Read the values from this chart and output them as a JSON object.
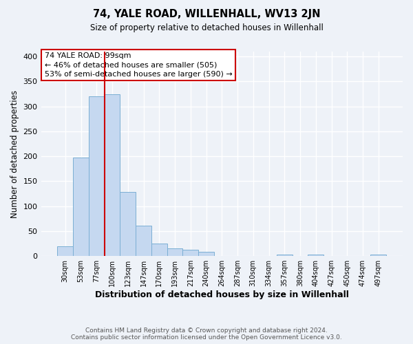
{
  "title": "74, YALE ROAD, WILLENHALL, WV13 2JN",
  "subtitle": "Size of property relative to detached houses in Willenhall",
  "xlabel": "Distribution of detached houses by size in Willenhall",
  "ylabel": "Number of detached properties",
  "bar_labels": [
    "30sqm",
    "53sqm",
    "77sqm",
    "100sqm",
    "123sqm",
    "147sqm",
    "170sqm",
    "193sqm",
    "217sqm",
    "240sqm",
    "264sqm",
    "287sqm",
    "310sqm",
    "334sqm",
    "357sqm",
    "380sqm",
    "404sqm",
    "427sqm",
    "450sqm",
    "474sqm",
    "497sqm"
  ],
  "all_bar_values": [
    19,
    198,
    320,
    325,
    128,
    61,
    25,
    16,
    13,
    8,
    0,
    0,
    0,
    0,
    3,
    0,
    3,
    0,
    0,
    0,
    3
  ],
  "bar_color": "#c5d8f0",
  "bar_edge_color": "#7bafd4",
  "vline_color": "#cc0000",
  "vline_position": 2.5,
  "annotation_text_line1": "74 YALE ROAD: 99sqm",
  "annotation_text_line2": "← 46% of detached houses are smaller (505)",
  "annotation_text_line3": "53% of semi-detached houses are larger (590) →",
  "box_edge_color": "#cc0000",
  "ylim": [
    0,
    410
  ],
  "yticks": [
    0,
    50,
    100,
    150,
    200,
    250,
    300,
    350,
    400
  ],
  "footer_line1": "Contains HM Land Registry data © Crown copyright and database right 2024.",
  "footer_line2": "Contains public sector information licensed under the Open Government Licence v3.0.",
  "bg_color": "#eef2f8",
  "grid_color": "#ffffff"
}
